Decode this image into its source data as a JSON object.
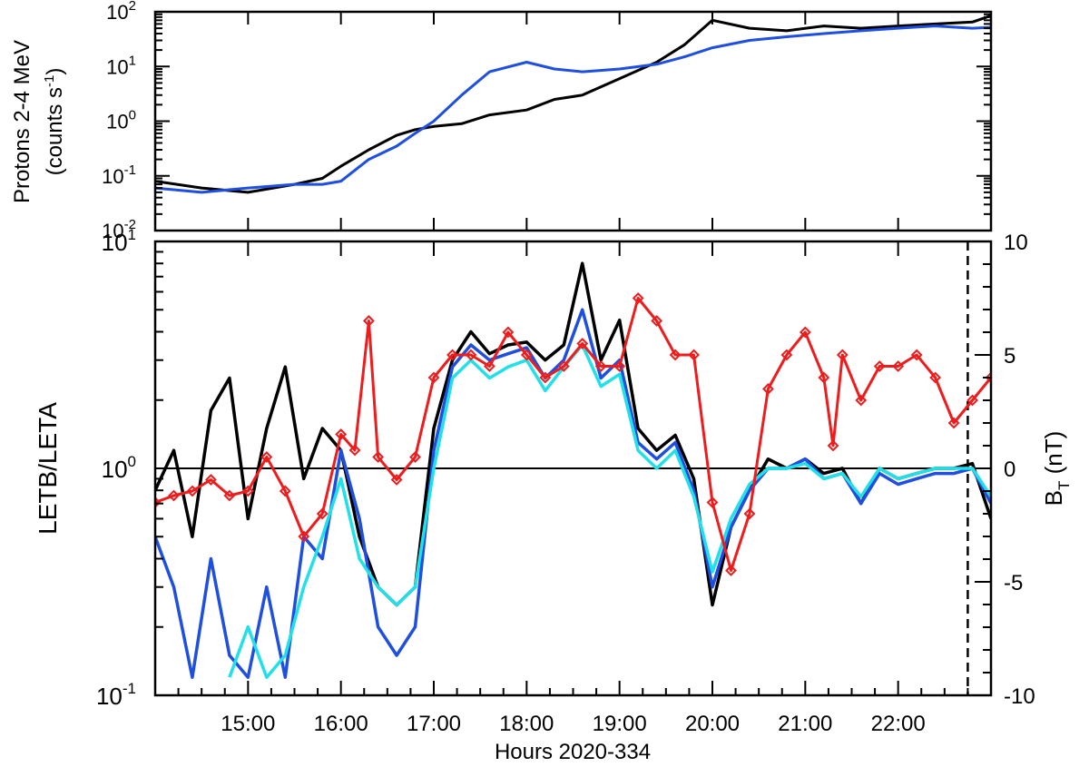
{
  "chart_data": [
    {
      "type": "line",
      "panel": "top",
      "ylabel_line1": "Protons 2-4 MeV",
      "ylabel_line2": "(counts s",
      "ylabel_unit_sup": "-1",
      "ylabel_close": ")",
      "yscale": "log",
      "ylim": [
        0.01,
        100
      ],
      "yticks": [
        {
          "value": 0.01,
          "label": "10",
          "exp": "-2"
        },
        {
          "value": 0.1,
          "label": "10",
          "exp": "-1"
        },
        {
          "value": 1,
          "label": "10",
          "exp": "0"
        },
        {
          "value": 10,
          "label": "10",
          "exp": "1"
        },
        {
          "value": 100,
          "label": "10",
          "exp": "2"
        }
      ],
      "xlim": [
        14.0,
        23.0
      ],
      "series": [
        {
          "color": "#000000",
          "x": [
            14.0,
            14.5,
            15.0,
            15.5,
            15.8,
            16.0,
            16.3,
            16.6,
            16.8,
            17.0,
            17.3,
            17.6,
            18.0,
            18.3,
            18.6,
            19.0,
            19.4,
            19.7,
            20.0,
            20.4,
            20.8,
            21.2,
            21.6,
            22.0,
            22.4,
            22.8,
            23.0
          ],
          "y": [
            0.08,
            0.06,
            0.05,
            0.07,
            0.09,
            0.15,
            0.3,
            0.55,
            0.7,
            0.8,
            0.9,
            1.3,
            1.6,
            2.5,
            3.0,
            6.0,
            12.0,
            25.0,
            70.0,
            50.0,
            45.0,
            55.0,
            50.0,
            55.0,
            60.0,
            65.0,
            85.0
          ]
        },
        {
          "color": "#1f4fe0",
          "x": [
            14.0,
            14.5,
            15.0,
            15.5,
            15.8,
            16.0,
            16.3,
            16.6,
            16.8,
            17.0,
            17.3,
            17.6,
            18.0,
            18.3,
            18.6,
            19.0,
            19.4,
            19.7,
            20.0,
            20.4,
            20.8,
            21.2,
            21.6,
            22.0,
            22.4,
            22.8,
            23.0
          ],
          "y": [
            0.06,
            0.05,
            0.06,
            0.07,
            0.07,
            0.08,
            0.2,
            0.35,
            0.6,
            1.0,
            3.0,
            8.0,
            12.0,
            9.0,
            8.0,
            9.0,
            11.0,
            15.0,
            22.0,
            30.0,
            35.0,
            40.0,
            45.0,
            50.0,
            55.0,
            50.0,
            52.0
          ]
        }
      ]
    },
    {
      "type": "line",
      "panel": "bottom",
      "ylabel": "LETB/LETA",
      "yscale": "log",
      "ylim": [
        0.1,
        10
      ],
      "yticks": [
        {
          "value": 0.1,
          "label": "10",
          "exp": "-1"
        },
        {
          "value": 1,
          "label": "10",
          "exp": "0"
        },
        {
          "value": 10,
          "label": "10",
          "exp": "1"
        }
      ],
      "y2label_main": "B",
      "y2label_sub": "T",
      "y2label_unit": " (nT)",
      "y2lim": [
        -10,
        10
      ],
      "y2ticks": [
        -10,
        -5,
        0,
        5,
        10
      ],
      "reference_line_y": 1,
      "vertical_dashed_line_x": 22.75,
      "xlim": [
        14.0,
        23.0
      ],
      "xlabel": "Hours 2020-334",
      "xticks": [
        {
          "value": 15,
          "label": "15:00"
        },
        {
          "value": 16,
          "label": "16:00"
        },
        {
          "value": 17,
          "label": "17:00"
        },
        {
          "value": 18,
          "label": "18:00"
        },
        {
          "value": 19,
          "label": "19:00"
        },
        {
          "value": 20,
          "label": "20:00"
        },
        {
          "value": 21,
          "label": "21:00"
        },
        {
          "value": 22,
          "label": "22:00"
        }
      ],
      "series": [
        {
          "color": "#000000",
          "axis": "left",
          "x": [
            14.0,
            14.2,
            14.4,
            14.6,
            14.8,
            15.0,
            15.2,
            15.4,
            15.6,
            15.8,
            16.0,
            16.2,
            16.4,
            16.6,
            16.8,
            17.0,
            17.2,
            17.4,
            17.6,
            17.8,
            18.0,
            18.2,
            18.4,
            18.6,
            18.8,
            19.0,
            19.2,
            19.4,
            19.6,
            19.8,
            20.0,
            20.2,
            20.4,
            20.6,
            20.8,
            21.0,
            21.2,
            21.4,
            21.6,
            21.8,
            22.0,
            22.2,
            22.4,
            22.6,
            22.8,
            23.0
          ],
          "y": [
            0.8,
            1.2,
            0.5,
            1.8,
            2.5,
            0.6,
            1.5,
            2.8,
            0.9,
            1.5,
            1.2,
            0.5,
            0.3,
            0.25,
            0.3,
            1.5,
            3.0,
            4.0,
            3.2,
            3.5,
            3.6,
            3.0,
            3.5,
            8.0,
            3.0,
            4.5,
            1.5,
            1.2,
            1.4,
            0.9,
            0.25,
            0.55,
            0.8,
            1.1,
            1.0,
            1.1,
            0.95,
            1.0,
            0.7,
            1.0,
            0.9,
            0.95,
            1.0,
            1.0,
            1.05,
            0.6
          ]
        },
        {
          "color": "#1f4fe0",
          "axis": "left",
          "x": [
            14.0,
            14.2,
            14.4,
            14.6,
            14.8,
            15.0,
            15.2,
            15.4,
            15.6,
            15.8,
            16.0,
            16.2,
            16.4,
            16.6,
            16.8,
            17.0,
            17.2,
            17.4,
            17.6,
            17.8,
            18.0,
            18.2,
            18.4,
            18.6,
            18.8,
            19.0,
            19.2,
            19.4,
            19.6,
            19.8,
            20.0,
            20.2,
            20.4,
            20.6,
            20.8,
            21.0,
            21.2,
            21.4,
            21.6,
            21.8,
            22.0,
            22.2,
            22.4,
            22.6,
            22.8,
            23.0
          ],
          "y": [
            0.5,
            0.3,
            0.12,
            0.4,
            0.15,
            0.12,
            0.3,
            0.12,
            0.5,
            0.4,
            1.2,
            0.6,
            0.2,
            0.15,
            0.2,
            1.2,
            2.8,
            3.5,
            3.0,
            3.2,
            3.4,
            2.5,
            3.0,
            5.0,
            2.5,
            3.0,
            1.3,
            1.1,
            1.3,
            0.8,
            0.3,
            0.55,
            0.8,
            1.0,
            1.0,
            1.1,
            0.9,
            0.95,
            0.7,
            0.95,
            0.85,
            0.9,
            0.95,
            0.95,
            1.0,
            0.7
          ]
        },
        {
          "color": "#22e0e8",
          "axis": "left",
          "x": [
            14.8,
            15.0,
            15.2,
            15.4,
            15.6,
            15.8,
            16.0,
            16.2,
            16.4,
            16.6,
            16.8,
            17.0,
            17.2,
            17.4,
            17.6,
            17.8,
            18.0,
            18.2,
            18.4,
            18.6,
            18.8,
            19.0,
            19.2,
            19.4,
            19.6,
            19.8,
            20.0,
            20.2,
            20.4,
            20.6,
            20.8,
            21.0,
            21.2,
            21.4,
            21.6,
            21.8,
            22.0,
            22.2,
            22.4,
            22.6,
            22.8,
            23.0
          ],
          "y": [
            0.12,
            0.2,
            0.12,
            0.15,
            0.3,
            0.5,
            0.9,
            0.4,
            0.3,
            0.25,
            0.3,
            1.0,
            2.5,
            3.0,
            2.5,
            2.8,
            3.0,
            2.2,
            2.8,
            3.5,
            2.3,
            2.6,
            1.2,
            1.0,
            1.2,
            0.75,
            0.35,
            0.6,
            0.85,
            1.0,
            1.0,
            1.05,
            0.9,
            0.95,
            0.75,
            1.0,
            0.9,
            0.95,
            1.0,
            1.0,
            1.0,
            0.75
          ]
        },
        {
          "color": "#ee1c1c",
          "axis": "right",
          "marker": "diamond",
          "x": [
            14.0,
            14.2,
            14.4,
            14.6,
            14.8,
            15.0,
            15.2,
            15.4,
            15.6,
            15.8,
            16.0,
            16.15,
            16.3,
            16.4,
            16.6,
            16.8,
            17.0,
            17.2,
            17.4,
            17.6,
            17.8,
            18.0,
            18.2,
            18.4,
            18.6,
            18.8,
            19.0,
            19.2,
            19.4,
            19.6,
            19.8,
            20.0,
            20.2,
            20.4,
            20.6,
            20.8,
            21.0,
            21.2,
            21.3,
            21.4,
            21.6,
            21.8,
            22.0,
            22.2,
            22.4,
            22.6,
            22.8,
            23.0
          ],
          "y": [
            -1.5,
            -1.2,
            -1.0,
            -0.5,
            -1.2,
            -1.0,
            0.5,
            -1.0,
            -3.0,
            -2.0,
            1.5,
            0.8,
            6.5,
            0.5,
            -0.5,
            0.5,
            4.0,
            5.0,
            5.0,
            4.5,
            6.0,
            5.0,
            4.0,
            4.5,
            5.5,
            4.5,
            4.5,
            7.5,
            6.5,
            5.0,
            5.0,
            -1.5,
            -4.5,
            -2.0,
            3.5,
            5.0,
            6.0,
            4.0,
            1.0,
            5.0,
            3.0,
            4.5,
            4.5,
            5.0,
            4.0,
            2.0,
            3.0,
            4.0
          ]
        }
      ]
    }
  ]
}
